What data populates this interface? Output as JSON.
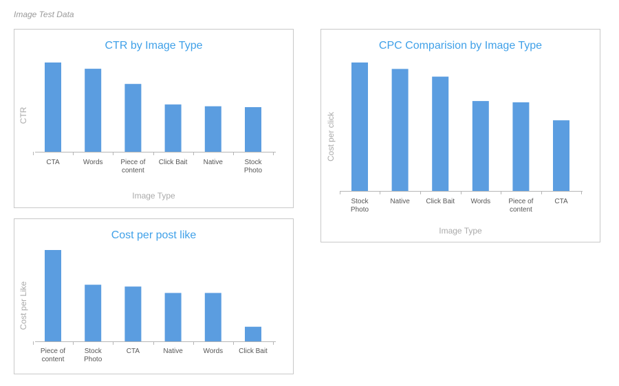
{
  "header": {
    "title": "Image Test Data"
  },
  "chart_data": [
    {
      "id": "ctr",
      "type": "bar",
      "title": "CTR by Image Type",
      "xlabel": "Image Type",
      "ylabel": "CTR",
      "categories": [
        "CTA",
        "Words",
        "Piece of content",
        "Click Bait",
        "Native",
        "Stock Photo"
      ],
      "values": [
        100,
        93,
        76,
        53,
        51,
        50
      ],
      "ylim": [
        0,
        100
      ],
      "color": "#5b9de0",
      "grid": false
    },
    {
      "id": "cpc",
      "type": "bar",
      "title": "CPC Comparision by Image Type",
      "xlabel": "Image Type",
      "ylabel": "Cost per click",
      "categories": [
        "Stock Photo",
        "Native",
        "Click Bait",
        "Words",
        "Piece of content",
        "CTA"
      ],
      "values": [
        100,
        95,
        89,
        70,
        69,
        55
      ],
      "ylim": [
        0,
        100
      ],
      "color": "#5b9de0",
      "grid": false
    },
    {
      "id": "cpl",
      "type": "bar",
      "title": "Cost per post like",
      "xlabel": "",
      "ylabel": "Cost per Like",
      "categories": [
        "Piece of content",
        "Stock Photo",
        "CTA",
        "Native",
        "Words",
        "Click Bait"
      ],
      "values": [
        100,
        62,
        60,
        53,
        53,
        16
      ],
      "ylim": [
        0,
        100
      ],
      "color": "#5b9de0",
      "grid": false
    }
  ]
}
